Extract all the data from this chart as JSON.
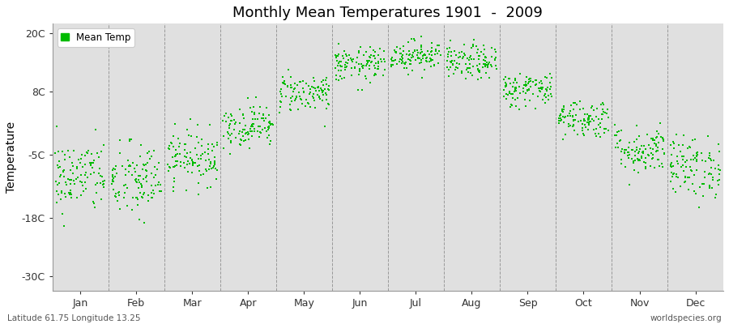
{
  "title": "Monthly Mean Temperatures 1901  -  2009",
  "ylabel": "Temperature",
  "bottom_left_text": "Latitude 61.75 Longitude 13.25",
  "bottom_right_text": "worldspecies.org",
  "legend_label": "Mean Temp",
  "dot_color": "#00bb00",
  "background_color": "#e0e0e0",
  "figure_bg": "#ffffff",
  "yticks": [
    20,
    8,
    -5,
    -18,
    -30
  ],
  "ytick_labels": [
    "20C",
    "8C",
    "-5C",
    "-18C",
    "-30C"
  ],
  "ylim": [
    -33,
    22
  ],
  "xlim": [
    0,
    12
  ],
  "months": [
    "Jan",
    "Feb",
    "Mar",
    "Apr",
    "May",
    "Jun",
    "Jul",
    "Aug",
    "Sep",
    "Oct",
    "Nov",
    "Dec"
  ],
  "mean_temps": [
    -9.5,
    -10.5,
    -5.5,
    1.0,
    7.8,
    13.5,
    15.5,
    14.0,
    8.5,
    2.5,
    -4.0,
    -7.5
  ],
  "std_temps": [
    3.8,
    4.0,
    2.8,
    2.2,
    2.0,
    1.8,
    1.6,
    1.8,
    1.8,
    2.0,
    2.5,
    3.2
  ],
  "n_years": 109,
  "seed": 42,
  "dot_size": 4,
  "title_fontsize": 13,
  "axis_fontsize": 9,
  "ylabel_fontsize": 10
}
